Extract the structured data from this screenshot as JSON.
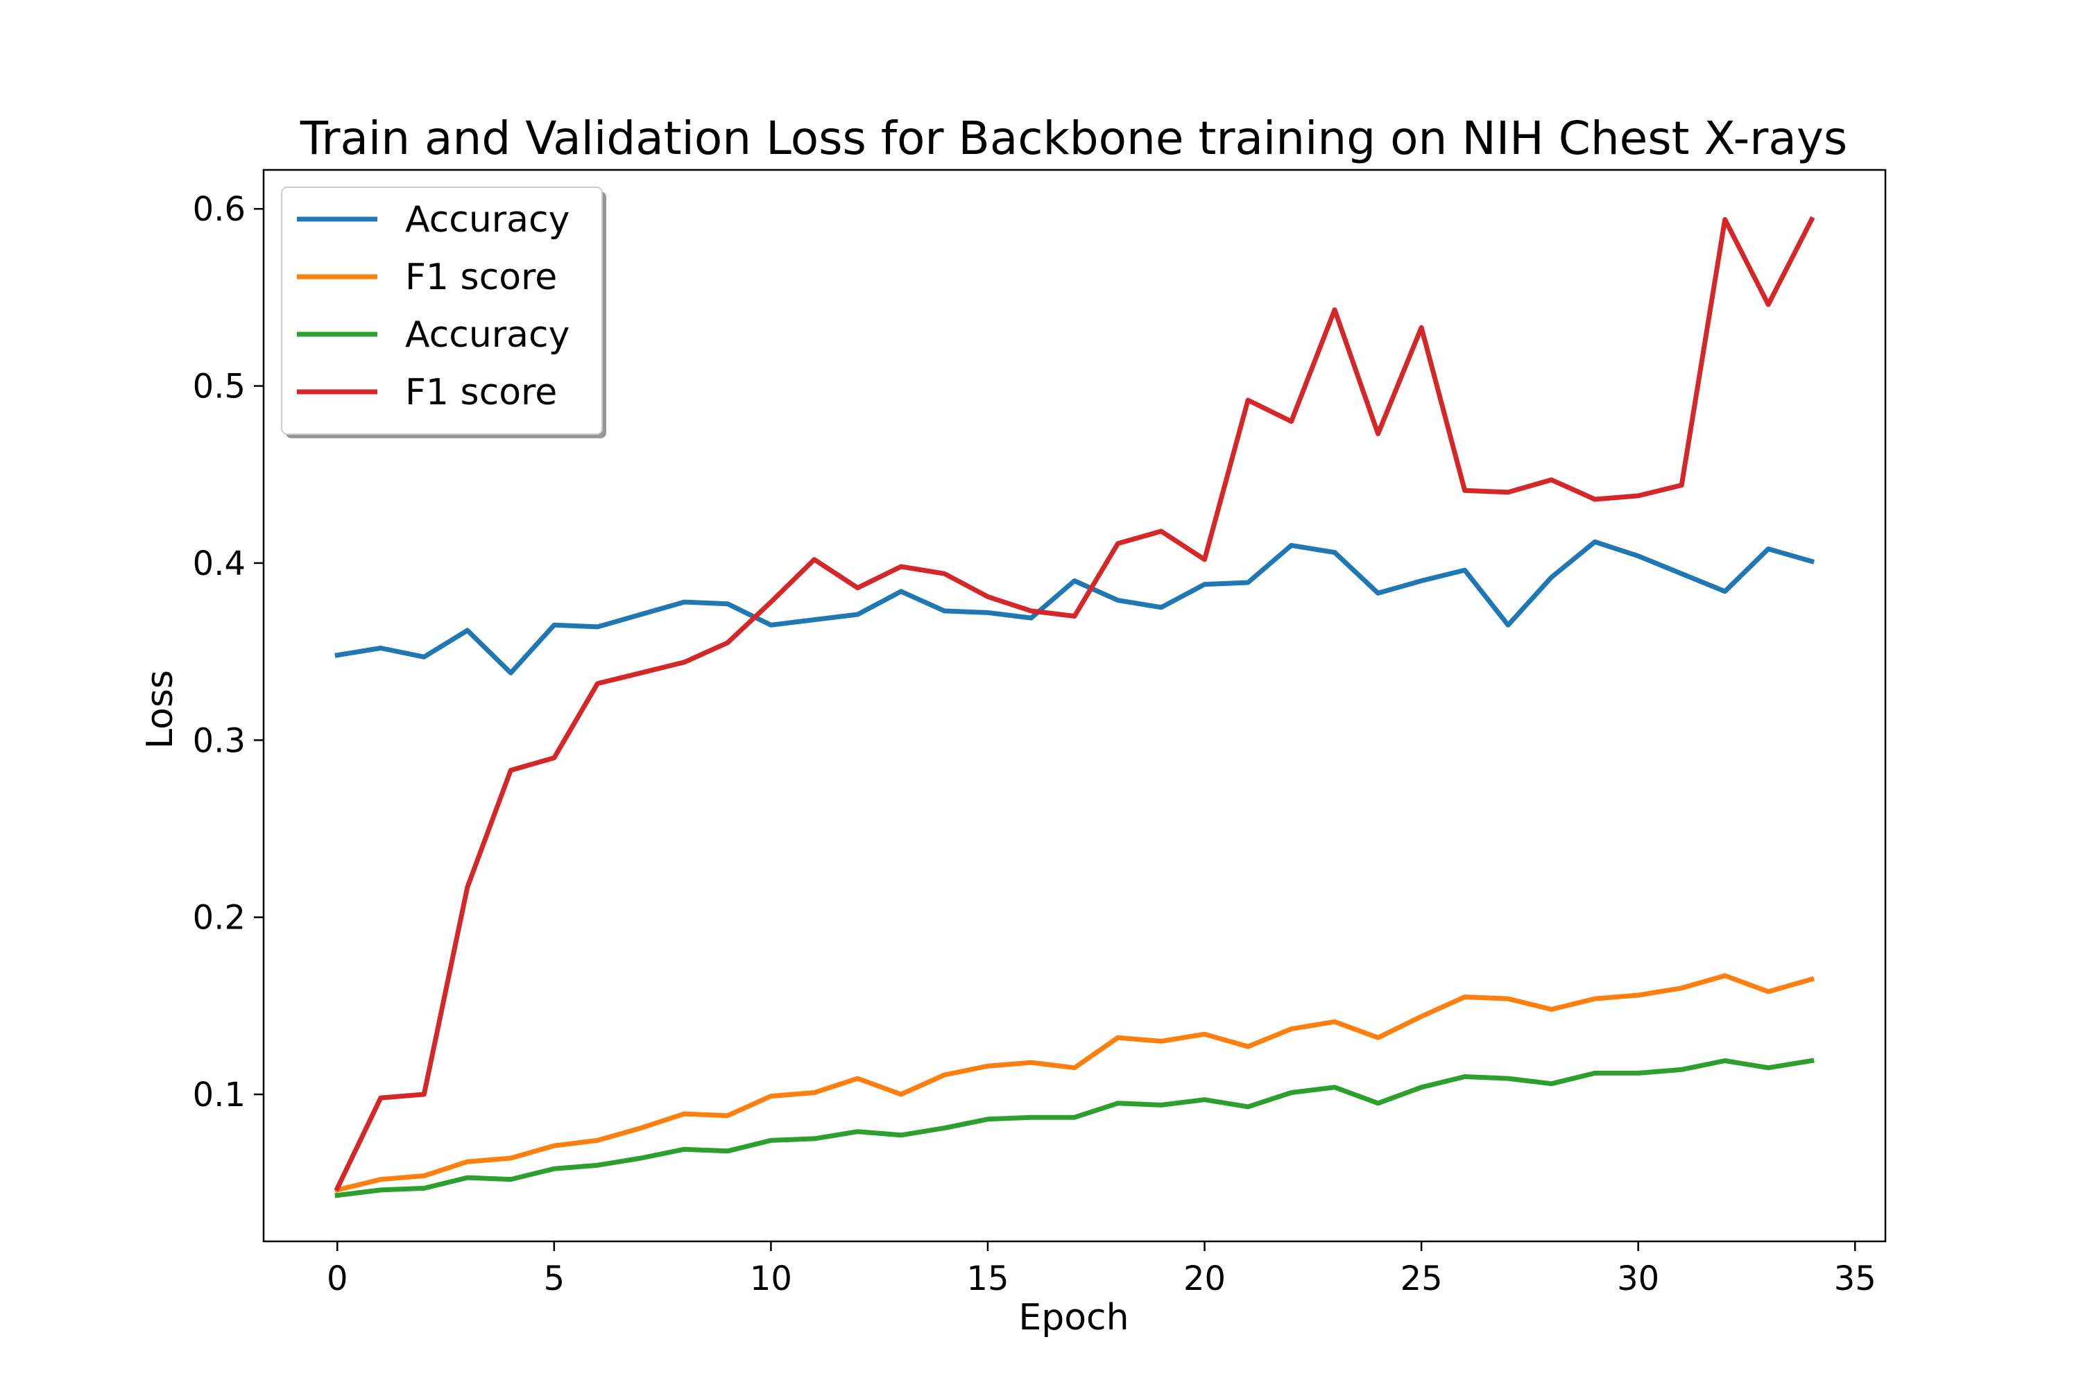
{
  "chart_data": {
    "type": "line",
    "title": "Train and Validation Loss for Backbone training on NIH Chest X-rays",
    "xlabel": "Epoch",
    "ylabel": "Loss",
    "xlim": [
      -1.7,
      35.7
    ],
    "ylim": [
      0.017,
      0.622
    ],
    "xticks": [
      0,
      5,
      10,
      15,
      20,
      25,
      30,
      35
    ],
    "yticks": [
      0.1,
      0.2,
      0.3,
      0.4,
      0.5,
      0.6
    ],
    "xtick_labels": [
      "0",
      "5",
      "10",
      "15",
      "20",
      "25",
      "30",
      "35"
    ],
    "ytick_labels": [
      "0.1",
      "0.2",
      "0.3",
      "0.4",
      "0.5",
      "0.6"
    ],
    "grid": false,
    "legend_position": "top-left",
    "x": [
      0,
      1,
      2,
      3,
      4,
      5,
      6,
      7,
      8,
      9,
      10,
      11,
      12,
      13,
      14,
      15,
      16,
      17,
      18,
      19,
      20,
      21,
      22,
      23,
      24,
      25,
      26,
      27,
      28,
      29,
      30,
      31,
      32,
      33,
      34
    ],
    "series": [
      {
        "name": "Accuracy",
        "color": "#1f77b4",
        "values": [
          0.348,
          0.352,
          0.347,
          0.362,
          0.338,
          0.365,
          0.364,
          0.371,
          0.378,
          0.377,
          0.365,
          0.368,
          0.371,
          0.384,
          0.373,
          0.372,
          0.369,
          0.39,
          0.379,
          0.375,
          0.388,
          0.389,
          0.41,
          0.406,
          0.383,
          0.39,
          0.396,
          0.365,
          0.392,
          0.412,
          0.404,
          0.394,
          0.384,
          0.408,
          0.401
        ]
      },
      {
        "name": "F1 score",
        "color": "#ff7f0e",
        "values": [
          0.046,
          0.052,
          0.054,
          0.062,
          0.064,
          0.071,
          0.074,
          0.081,
          0.089,
          0.088,
          0.099,
          0.101,
          0.109,
          0.1,
          0.111,
          0.116,
          0.118,
          0.115,
          0.132,
          0.13,
          0.134,
          0.127,
          0.137,
          0.141,
          0.132,
          0.144,
          0.155,
          0.154,
          0.148,
          0.154,
          0.156,
          0.16,
          0.167,
          0.158,
          0.165
        ]
      },
      {
        "name": "Accuracy",
        "color": "#2ca02c",
        "values": [
          0.043,
          0.046,
          0.047,
          0.053,
          0.052,
          0.058,
          0.06,
          0.064,
          0.069,
          0.068,
          0.074,
          0.075,
          0.079,
          0.077,
          0.081,
          0.086,
          0.087,
          0.087,
          0.095,
          0.094,
          0.097,
          0.093,
          0.101,
          0.104,
          0.095,
          0.104,
          0.11,
          0.109,
          0.106,
          0.112,
          0.112,
          0.114,
          0.119,
          0.115,
          0.119
        ]
      },
      {
        "name": "F1 score",
        "color": "#d62728",
        "values": [
          0.047,
          0.098,
          0.1,
          0.217,
          0.283,
          0.29,
          0.332,
          0.338,
          0.344,
          0.355,
          0.378,
          0.402,
          0.386,
          0.398,
          0.394,
          0.381,
          0.373,
          0.37,
          0.411,
          0.418,
          0.402,
          0.492,
          0.48,
          0.543,
          0.473,
          0.533,
          0.441,
          0.44,
          0.447,
          0.436,
          0.438,
          0.444,
          0.594,
          0.546,
          0.594
        ]
      }
    ]
  }
}
